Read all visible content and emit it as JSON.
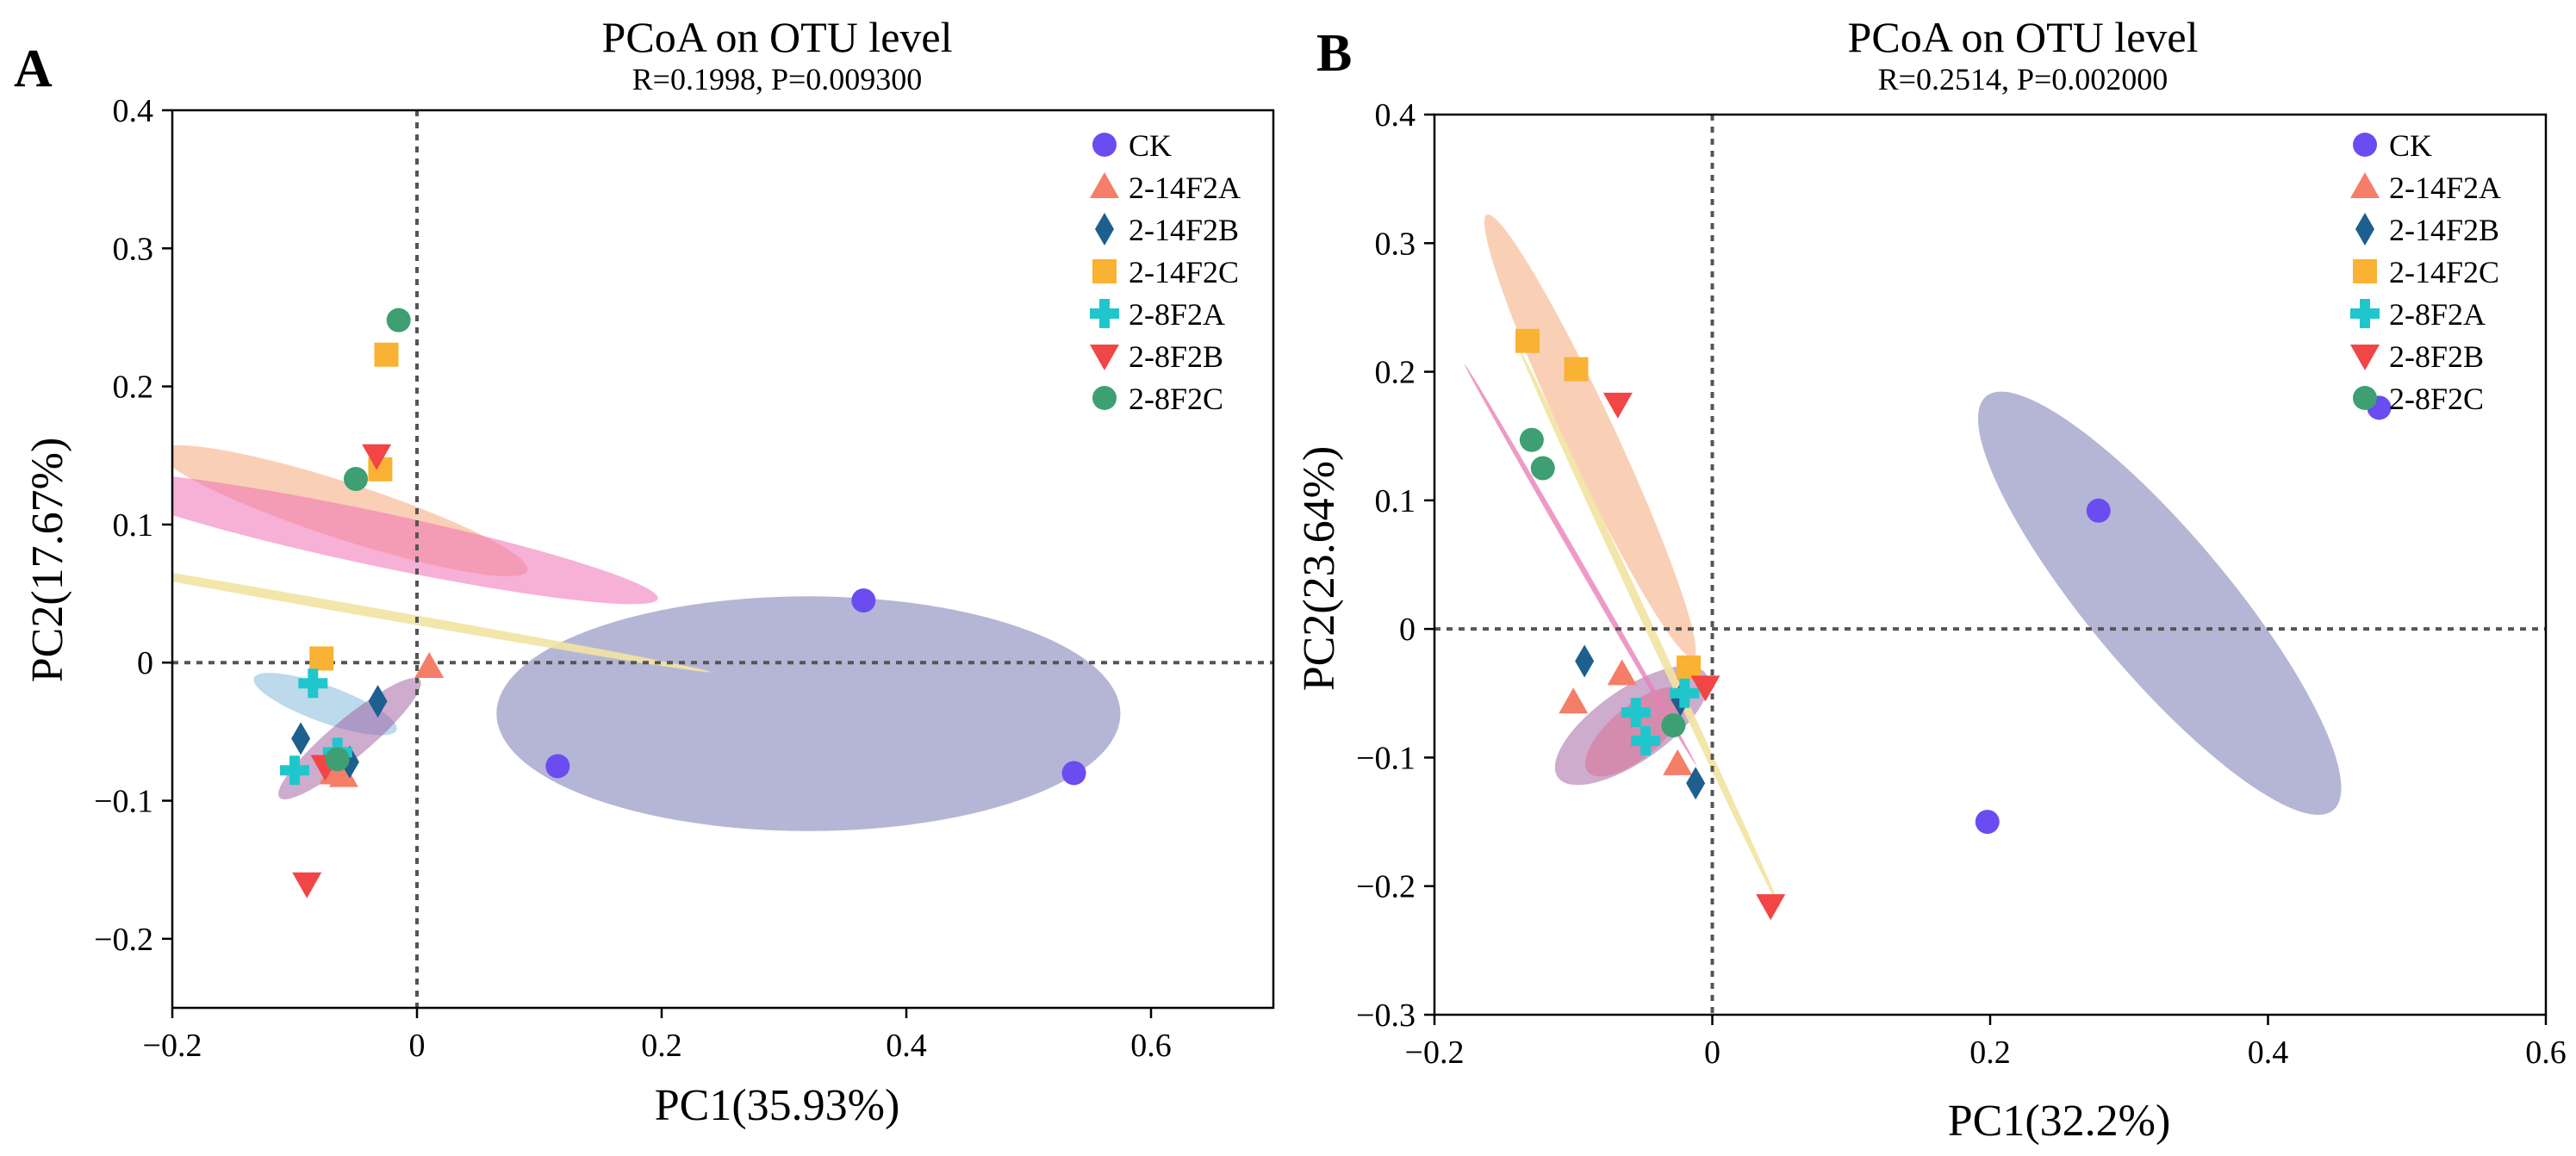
{
  "chart_data": [
    {
      "type": "scatter",
      "panel": "A",
      "title": "PCoA on OTU level",
      "subtitle": "R=0.1998, P=0.009300",
      "xlabel": "PC1(35.93%)",
      "ylabel": "PC2(17.67%)",
      "xlim": [
        -0.2,
        0.7
      ],
      "ylim": [
        -0.25,
        0.4
      ],
      "xticks": [
        -0.2,
        0,
        0.2,
        0.4,
        0.6
      ],
      "xtick_labels": [
        "−0.2",
        "0",
        "0.2",
        "0.4",
        "0.6"
      ],
      "yticks": [
        -0.2,
        -0.1,
        0,
        0.1,
        0.2,
        0.3,
        0.4
      ],
      "ytick_labels": [
        "−0.2",
        "−0.1",
        "0",
        "0.1",
        "0.2",
        "0.3",
        "0.4"
      ],
      "legend_position": "top-right",
      "series": [
        {
          "name": "CK",
          "marker": "circle",
          "color": "#6a4cf0",
          "points": [
            [
              0.365,
              0.045
            ],
            [
              0.115,
              -0.075
            ],
            [
              0.537,
              -0.08
            ]
          ]
        },
        {
          "name": "2-14F2A",
          "marker": "triangle-up",
          "color": "#f47e68",
          "points": [
            [
              0.01,
              -0.003
            ],
            [
              -0.068,
              -0.08
            ],
            [
              -0.06,
              -0.082
            ]
          ]
        },
        {
          "name": "2-14F2B",
          "marker": "diamond",
          "color": "#1d5f8e",
          "points": [
            [
              -0.095,
              -0.055
            ],
            [
              -0.055,
              -0.072
            ],
            [
              -0.032,
              -0.028
            ]
          ]
        },
        {
          "name": "2-14F2C",
          "marker": "square",
          "color": "#f9b233",
          "points": [
            [
              -0.078,
              0.003
            ],
            [
              -0.03,
              0.14
            ],
            [
              -0.025,
              0.223
            ]
          ]
        },
        {
          "name": "2-8F2A",
          "marker": "plus",
          "color": "#1fc7cc",
          "points": [
            [
              -0.085,
              -0.015
            ],
            [
              -0.1,
              -0.078
            ],
            [
              -0.065,
              -0.065
            ]
          ]
        },
        {
          "name": "2-8F2B",
          "marker": "triangle-down",
          "color": "#f24545",
          "points": [
            [
              -0.033,
              0.15
            ],
            [
              -0.09,
              -0.16
            ],
            [
              -0.075,
              -0.075
            ]
          ]
        },
        {
          "name": "2-8F2C",
          "marker": "circle",
          "color": "#3e9f72",
          "points": [
            [
              -0.015,
              0.248
            ],
            [
              -0.05,
              0.133
            ],
            [
              -0.065,
              -0.07
            ]
          ]
        }
      ],
      "ellipses": [
        {
          "group": "CK",
          "color": "#6b6eab",
          "opacity": 0.5,
          "cx": 0.32,
          "cy": -0.037,
          "rx": 0.255,
          "ry": 0.085,
          "angle_deg": 0
        },
        {
          "group": "2-14F2C",
          "color": "#f4a97a",
          "opacity": 0.55,
          "cx": -0.06,
          "cy": 0.11,
          "rx": 0.023,
          "ry": 0.14,
          "angle_deg": 72
        },
        {
          "group": "2-8F2C",
          "color": "#f06fb5",
          "opacity": 0.55,
          "cx": -0.035,
          "cy": 0.09,
          "rx": 0.022,
          "ry": 0.21,
          "angle_deg": 78
        },
        {
          "group": "2-14F2B",
          "color": "#5a9fcf",
          "opacity": 0.4,
          "cx": -0.075,
          "cy": -0.03,
          "rx": 0.015,
          "ry": 0.055,
          "angle_deg": 70
        },
        {
          "group": "2-14F2A",
          "color": "#9b5a9e",
          "opacity": 0.5,
          "cx": -0.055,
          "cy": -0.055,
          "rx": 0.075,
          "ry": 0.014,
          "angle_deg": 40
        },
        {
          "group": "2-8F2B",
          "color": "#f2e3a2",
          "opacity": 0.9,
          "cx": -0.06,
          "cy": 0.04,
          "rx": 0.004,
          "ry": 0.27,
          "angle_deg": 80
        }
      ]
    },
    {
      "type": "scatter",
      "panel": "B",
      "title": "PCoA on OTU level",
      "subtitle": "R=0.2514, P=0.002000",
      "xlabel": "PC1(32.2%)",
      "ylabel": "PC2(23.64%)",
      "xlim": [
        -0.2,
        0.6
      ],
      "ylim": [
        -0.3,
        0.4
      ],
      "xticks": [
        -0.2,
        0,
        0.2,
        0.4,
        0.6
      ],
      "xtick_labels": [
        "−0.2",
        "0",
        "0.2",
        "0.4",
        "0.6"
      ],
      "yticks": [
        -0.3,
        -0.2,
        -0.1,
        0,
        0.1,
        0.2,
        0.3,
        0.4
      ],
      "ytick_labels": [
        "−0.3",
        "−0.2",
        "−0.1",
        "0",
        "0.1",
        "0.2",
        "0.3",
        "0.4"
      ],
      "legend_position": "top-right",
      "series": [
        {
          "name": "CK",
          "marker": "circle",
          "color": "#6a4cf0",
          "points": [
            [
              0.48,
              0.172
            ],
            [
              0.278,
              0.092
            ],
            [
              0.198,
              -0.15
            ]
          ]
        },
        {
          "name": "2-14F2A",
          "marker": "triangle-up",
          "color": "#f47e68",
          "points": [
            [
              -0.1,
              -0.057
            ],
            [
              -0.065,
              -0.035
            ],
            [
              -0.025,
              -0.105
            ]
          ]
        },
        {
          "name": "2-14F2B",
          "marker": "diamond",
          "color": "#1d5f8e",
          "points": [
            [
              -0.092,
              -0.025
            ],
            [
              -0.023,
              -0.055
            ],
            [
              -0.012,
              -0.12
            ]
          ]
        },
        {
          "name": "2-14F2C",
          "marker": "square",
          "color": "#f9b233",
          "points": [
            [
              -0.133,
              0.224
            ],
            [
              -0.098,
              0.202
            ],
            [
              -0.017,
              -0.03
            ]
          ]
        },
        {
          "name": "2-8F2A",
          "marker": "plus",
          "color": "#1fc7cc",
          "points": [
            [
              -0.055,
              -0.065
            ],
            [
              -0.048,
              -0.087
            ],
            [
              -0.02,
              -0.05
            ]
          ]
        },
        {
          "name": "2-8F2B",
          "marker": "triangle-down",
          "color": "#f24545",
          "points": [
            [
              -0.068,
              0.175
            ],
            [
              -0.005,
              -0.045
            ],
            [
              0.042,
              -0.215
            ]
          ]
        },
        {
          "name": "2-8F2C",
          "marker": "circle",
          "color": "#3e9f72",
          "points": [
            [
              -0.13,
              0.147
            ],
            [
              -0.122,
              0.125
            ],
            [
              -0.028,
              -0.075
            ]
          ]
        }
      ],
      "ellipses": [
        {
          "group": "CK",
          "color": "#6b6eab",
          "opacity": 0.5,
          "cx": 0.322,
          "cy": 0.02,
          "rx": 0.05,
          "ry": 0.21,
          "angle_deg": 40
        },
        {
          "group": "2-14F2C",
          "color": "#f4a97a",
          "opacity": 0.55,
          "cx": -0.088,
          "cy": 0.15,
          "rx": 0.018,
          "ry": 0.19,
          "angle_deg": 25
        },
        {
          "group": "2-14F2A",
          "color": "#9b5a9e",
          "opacity": 0.5,
          "cx": -0.058,
          "cy": -0.075,
          "rx": 0.065,
          "ry": 0.028,
          "angle_deg": 35
        },
        {
          "group": "2-14F2B",
          "color": "#e05a80",
          "opacity": 0.4,
          "cx": -0.055,
          "cy": -0.08,
          "rx": 0.045,
          "ry": 0.02,
          "angle_deg": 40
        },
        {
          "group": "2-8F2B",
          "color": "#f2e3a2",
          "opacity": 0.9,
          "cx": -0.045,
          "cy": 0.0,
          "rx": 0.003,
          "ry": 0.24,
          "angle_deg": 25
        },
        {
          "group": "2-8F2C",
          "color": "#e881b8",
          "opacity": 0.8,
          "cx": -0.095,
          "cy": 0.05,
          "rx": 0.002,
          "ry": 0.18,
          "angle_deg": 30
        }
      ]
    }
  ]
}
